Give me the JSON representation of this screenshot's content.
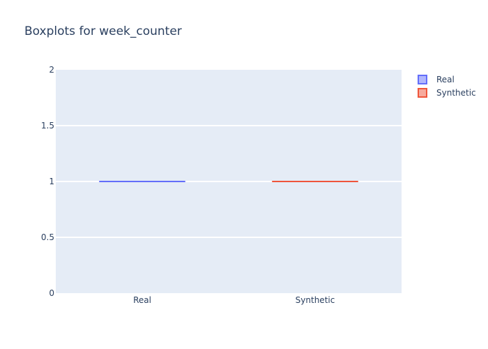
{
  "chart_data": {
    "type": "box",
    "title": "Boxplots for week_counter",
    "xlabel": "",
    "ylabel": "",
    "categories": [
      "Real",
      "Synthetic"
    ],
    "ylim": [
      0,
      2
    ],
    "y_ticks": [
      "0",
      "0.5",
      "1",
      "1.5",
      "2"
    ],
    "y_tick_values": [
      0,
      0.5,
      1,
      1.5,
      2
    ],
    "grid": true,
    "legend_position": "top-right",
    "series": [
      {
        "name": "Real",
        "category": "Real",
        "color": "#636efa",
        "fill": "#b1b7fd",
        "min": 1,
        "q1": 1,
        "median": 1,
        "q3": 1,
        "max": 1
      },
      {
        "name": "Synthetic",
        "category": "Synthetic",
        "color": "#ef553b",
        "fill": "#f7aa9d",
        "min": 1,
        "q1": 1,
        "median": 1,
        "q3": 1,
        "max": 1
      }
    ],
    "plot_background": "#e5ecf6",
    "gridline_color": "#ffffff",
    "text_color": "#2a3f5f"
  }
}
